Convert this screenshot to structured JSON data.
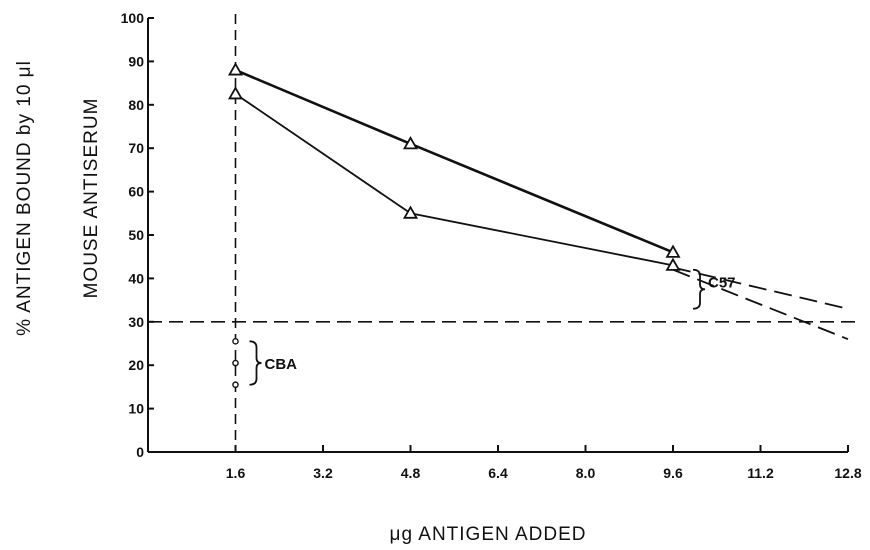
{
  "chart_data": {
    "type": "line",
    "xlabel": "μg ANTIGEN ADDED",
    "ylabel": "% ANTIGEN BOUND by 10 μl",
    "ylabel2": "MOUSE ANTISERUM",
    "xlim": [
      0,
      12.8
    ],
    "ylim": [
      0,
      100
    ],
    "x_ticks": [
      "1.6",
      "3.2",
      "4.8",
      "6.4",
      "8.0",
      "9.6",
      "11.2",
      "12.8"
    ],
    "y_ticks": [
      "0",
      "10",
      "20",
      "30",
      "40",
      "50",
      "60",
      "70",
      "80",
      "90",
      "100"
    ],
    "series": [
      {
        "group": "C57",
        "marker": "triangle",
        "x": [
          1.6,
          4.8,
          9.6
        ],
        "y": [
          88,
          71,
          46
        ]
      },
      {
        "group": "C57",
        "marker": "triangle",
        "x": [
          1.6,
          4.8,
          9.6
        ],
        "y": [
          82.5,
          55,
          43
        ]
      }
    ],
    "extrapolations": [
      {
        "x": [
          9.6,
          12.8
        ],
        "y": [
          42.5,
          33
        ]
      },
      {
        "x": [
          9.6,
          12.8
        ],
        "y": [
          42,
          26
        ]
      }
    ],
    "reference_lines": {
      "vertical_x": 1.6,
      "horizontal_y": 30
    },
    "cba_points": {
      "group": "CBA",
      "marker": "circle",
      "x": 1.6,
      "y": [
        25.5,
        20.5,
        15.5
      ]
    },
    "annotations": [
      "C57",
      "CBA"
    ],
    "grid": false,
    "legend": "none"
  }
}
